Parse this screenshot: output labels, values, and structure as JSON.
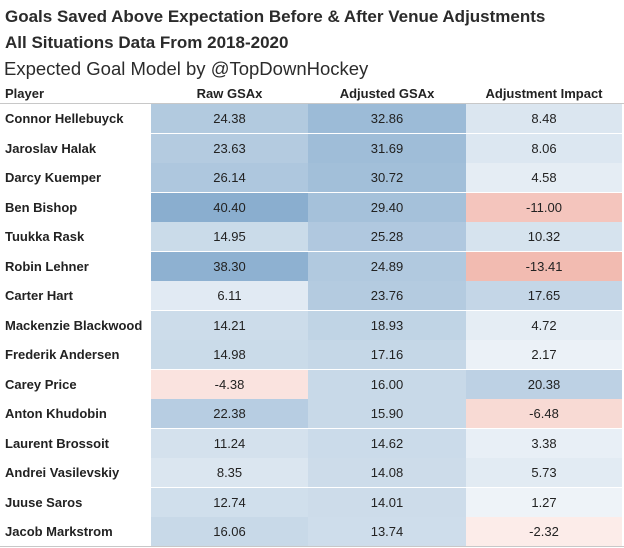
{
  "title_line1": "Goals Saved Above Expectation Before & After Venue Adjustments",
  "title_line2": "All Situations Data From 2018-2020",
  "subtitle": "Expected Goal Model by @TopDownHockey",
  "chart_data": {
    "type": "table",
    "columns": [
      "Player",
      "Raw GSAx",
      "Adjusted GSAx",
      "Adjustment Impact"
    ],
    "rows": [
      {
        "player": "Connor Hellebuyck",
        "raw": "24.38",
        "adjusted": "32.86",
        "impact": "8.48"
      },
      {
        "player": "Jaroslav Halak",
        "raw": "23.63",
        "adjusted": "31.69",
        "impact": "8.06"
      },
      {
        "player": "Darcy Kuemper",
        "raw": "26.14",
        "adjusted": "30.72",
        "impact": "4.58"
      },
      {
        "player": "Ben Bishop",
        "raw": "40.40",
        "adjusted": "29.40",
        "impact": "-11.00"
      },
      {
        "player": "Tuukka Rask",
        "raw": "14.95",
        "adjusted": "25.28",
        "impact": "10.32"
      },
      {
        "player": "Robin Lehner",
        "raw": "38.30",
        "adjusted": "24.89",
        "impact": "-13.41"
      },
      {
        "player": "Carter Hart",
        "raw": "6.11",
        "adjusted": "23.76",
        "impact": "17.65"
      },
      {
        "player": "Mackenzie Blackwood",
        "raw": "14.21",
        "adjusted": "18.93",
        "impact": "4.72"
      },
      {
        "player": "Frederik Andersen",
        "raw": "14.98",
        "adjusted": "17.16",
        "impact": "2.17"
      },
      {
        "player": "Carey Price",
        "raw": "-4.38",
        "adjusted": "16.00",
        "impact": "20.38"
      },
      {
        "player": "Anton Khudobin",
        "raw": "22.38",
        "adjusted": "15.90",
        "impact": "-6.48"
      },
      {
        "player": "Laurent Brossoit",
        "raw": "11.24",
        "adjusted": "14.62",
        "impact": "3.38"
      },
      {
        "player": "Andrei Vasilevskiy",
        "raw": "8.35",
        "adjusted": "14.08",
        "impact": "5.73"
      },
      {
        "player": "Juuse Saros",
        "raw": "12.74",
        "adjusted": "14.01",
        "impact": "1.27"
      },
      {
        "player": "Jacob Markstrom",
        "raw": "16.06",
        "adjusted": "13.74",
        "impact": "-2.32"
      }
    ],
    "color_scale": {
      "type": "diverging",
      "positive_color": "#8aaecf",
      "negative_color": "#f2b8ae",
      "neutral_color": "#ffffff",
      "positive_max": 40,
      "negative_max": 14
    }
  }
}
